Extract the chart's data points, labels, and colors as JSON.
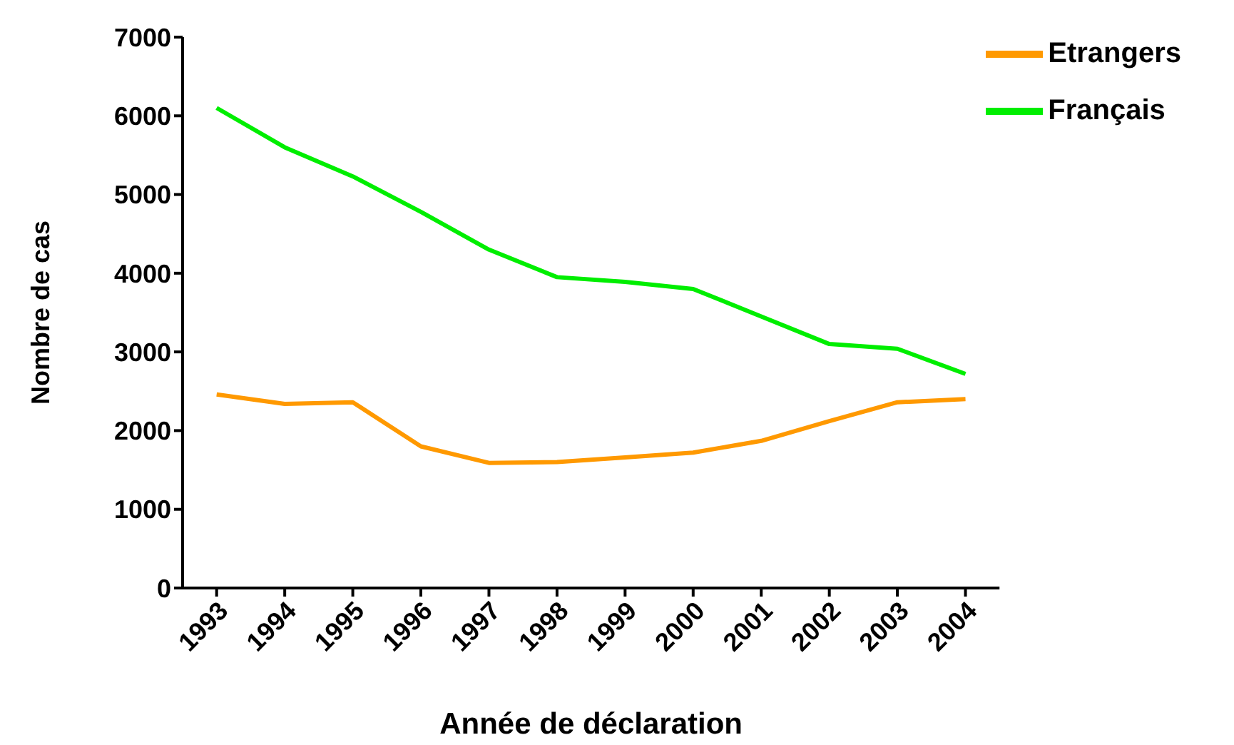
{
  "chart_data": {
    "type": "line",
    "xlabel": "Année de déclaration",
    "ylabel": "Nombre de cas",
    "categories": [
      "1993",
      "1994",
      "1995",
      "1996",
      "1997",
      "1998",
      "1999",
      "2000",
      "2001",
      "2002",
      "2003",
      "2004"
    ],
    "series": [
      {
        "name": "Français",
        "color": "#00ee00",
        "values": [
          6100,
          5600,
          5230,
          4780,
          4300,
          3950,
          3890,
          3800,
          3450,
          3100,
          3040,
          2720
        ]
      },
      {
        "name": "Etrangers",
        "color": "#ff9900",
        "values": [
          2460,
          2340,
          2360,
          1800,
          1590,
          1600,
          1660,
          1720,
          1870,
          2120,
          2360,
          2400
        ]
      }
    ],
    "ylim": [
      0,
      7000
    ],
    "yticks": [
      0,
      1000,
      2000,
      3000,
      4000,
      5000,
      6000,
      7000
    ],
    "grid": false,
    "legend": "top right",
    "marker": "none",
    "line_style": "solid"
  }
}
